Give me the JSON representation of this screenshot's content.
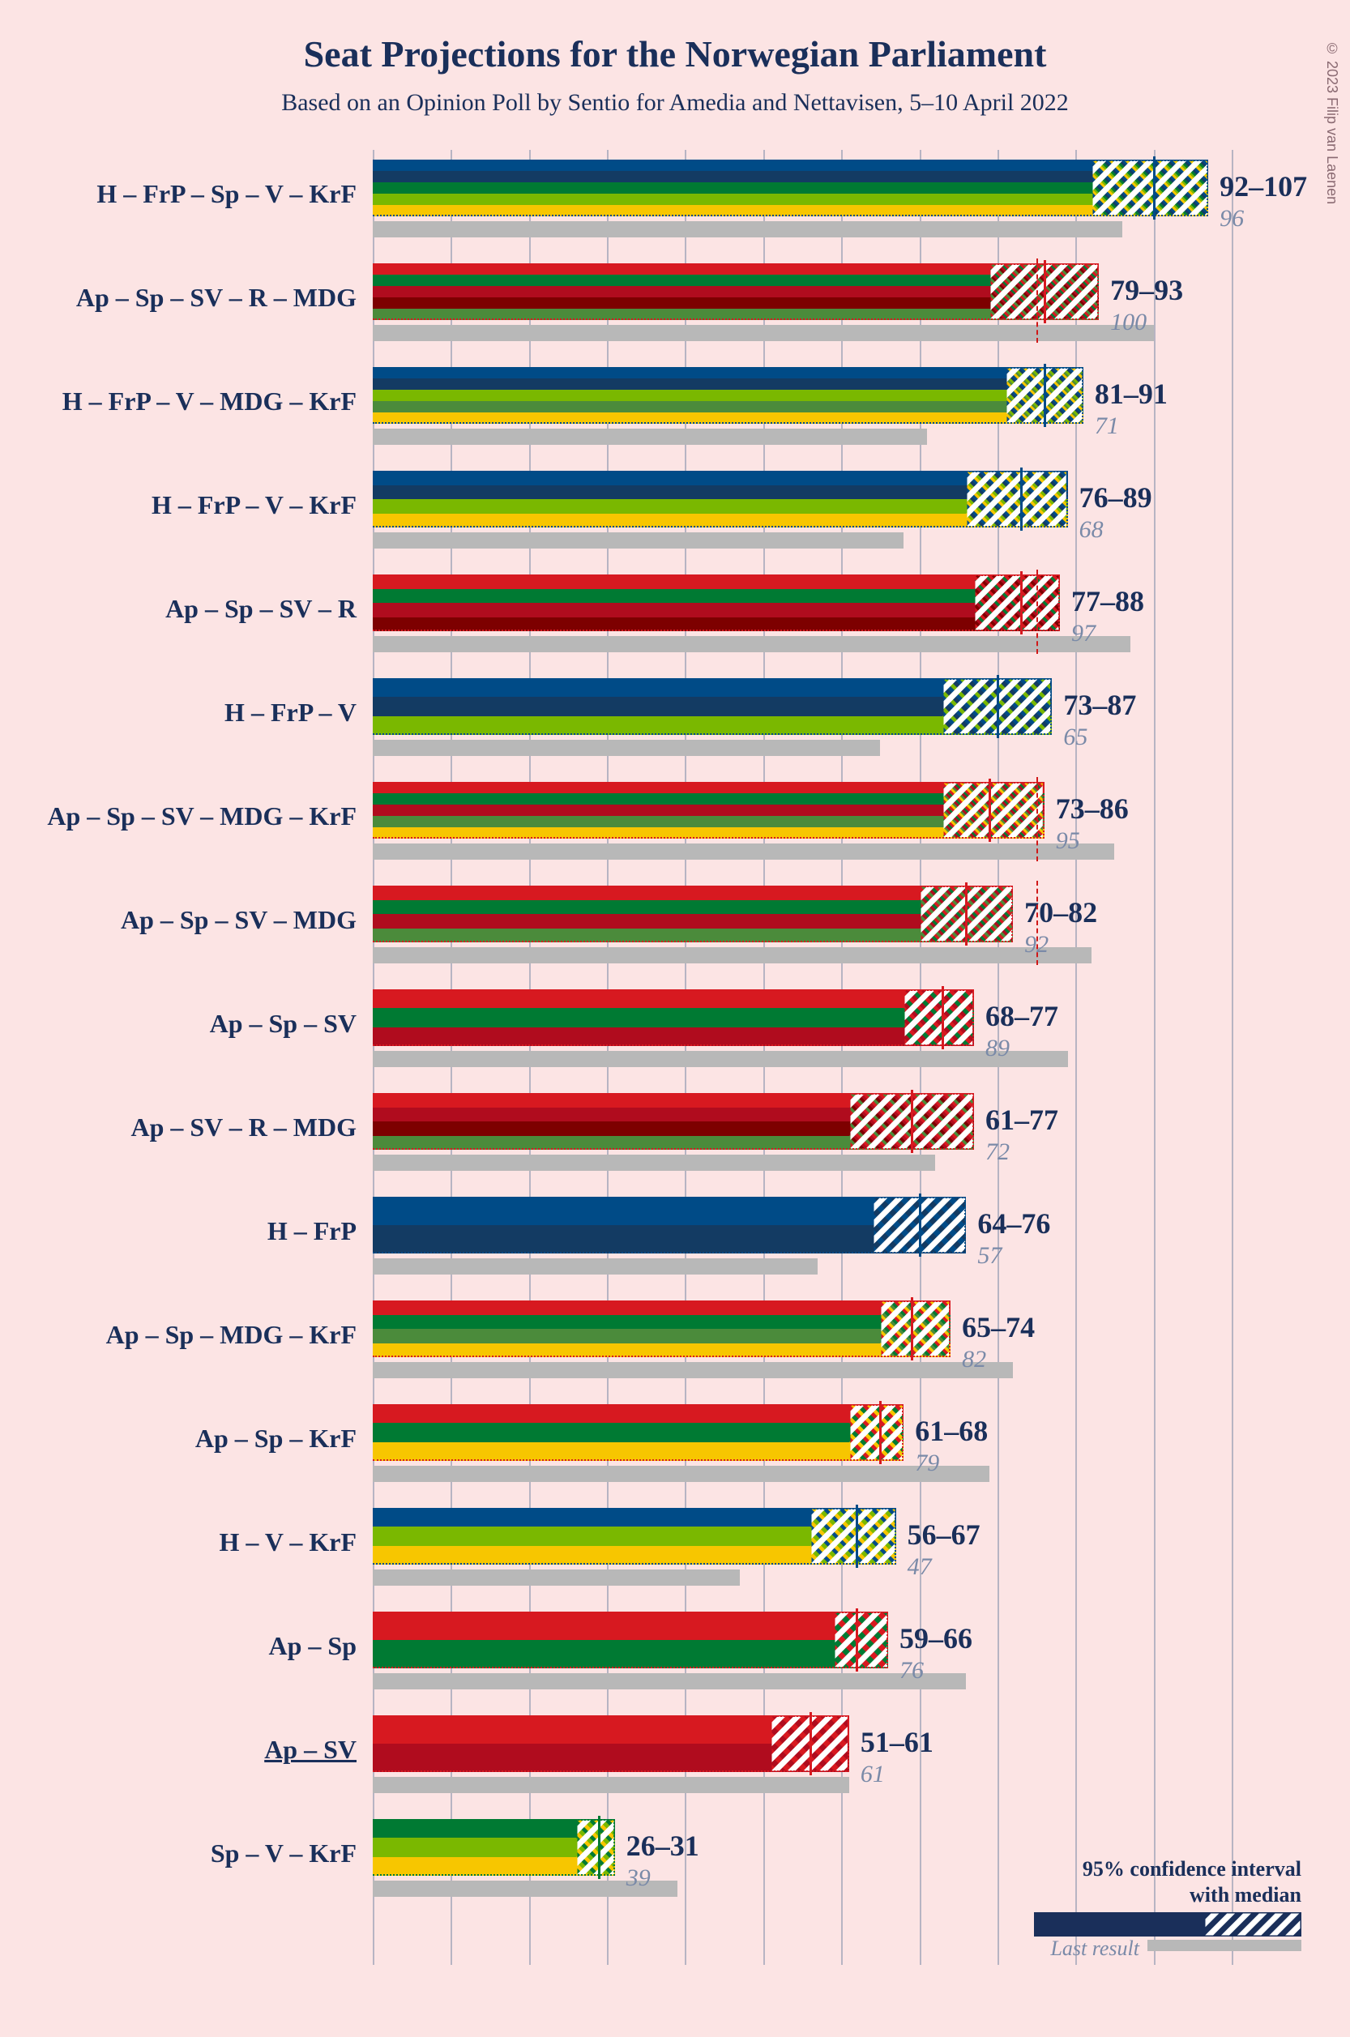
{
  "background_color": "#fce4e4",
  "title": "Seat Projections for the Norwegian Parliament",
  "title_color": "#1a2f5a",
  "title_fontsize": 46,
  "subtitle": "Based on an Opinion Poll by Sentio for Amedia and Nettavisen, 5–10 April 2022",
  "subtitle_color": "#1a2f5a",
  "subtitle_fontsize": 30,
  "copyright": "© 2023 Filip van Laenen",
  "copyright_color": "#8a6a72",
  "label_color": "#1a2f5a",
  "label_fontsize": 32,
  "value_color": "#1a2f5a",
  "value_fontsize": 36,
  "last_color": "#7a8aa8",
  "last_fontsize": 30,
  "gridline_color": "#7d8da8",
  "majority_line_color": "#d01818",
  "last_result_bar_color": "#b8b8b8",
  "party_colors": {
    "H": "#004b87",
    "FrP": "#133b63",
    "Sp": "#007a33",
    "V": "#7ab800",
    "KrF": "#f7c600",
    "Ap": "#d71920",
    "SV": "#b00c1e",
    "R": "#7d0000",
    "MDG": "#4b8b3b"
  },
  "chart": {
    "x_max": 110,
    "x_tick_step": 10,
    "majority_at": 85,
    "majority_rows": [
      1,
      4,
      6,
      7
    ]
  },
  "legend": {
    "title1": "95% confidence interval",
    "title2": "with median",
    "last_label": "Last result",
    "bar_color": "#1a2f5a",
    "text_color": "#1a2f5a",
    "last_bar_color": "#b8b8b8",
    "last_text_color": "#7a8aa8",
    "fontsize": 26
  },
  "rows": [
    {
      "label": "H – FrP – Sp – V – KrF",
      "parties": [
        "H",
        "FrP",
        "Sp",
        "V",
        "KrF"
      ],
      "low": 92,
      "high": 107,
      "median": 100,
      "last": 96,
      "underline": false
    },
    {
      "label": "Ap – Sp – SV – R – MDG",
      "parties": [
        "Ap",
        "Sp",
        "SV",
        "R",
        "MDG"
      ],
      "low": 79,
      "high": 93,
      "median": 86,
      "last": 100,
      "underline": false
    },
    {
      "label": "H – FrP – V – MDG – KrF",
      "parties": [
        "H",
        "FrP",
        "V",
        "MDG",
        "KrF"
      ],
      "low": 81,
      "high": 91,
      "median": 86,
      "last": 71,
      "underline": false
    },
    {
      "label": "H – FrP – V – KrF",
      "parties": [
        "H",
        "FrP",
        "V",
        "KrF"
      ],
      "low": 76,
      "high": 89,
      "median": 83,
      "last": 68,
      "underline": false
    },
    {
      "label": "Ap – Sp – SV – R",
      "parties": [
        "Ap",
        "Sp",
        "SV",
        "R"
      ],
      "low": 77,
      "high": 88,
      "median": 83,
      "last": 97,
      "underline": false
    },
    {
      "label": "H – FrP – V",
      "parties": [
        "H",
        "FrP",
        "V"
      ],
      "low": 73,
      "high": 87,
      "median": 80,
      "last": 65,
      "underline": false
    },
    {
      "label": "Ap – Sp – SV – MDG – KrF",
      "parties": [
        "Ap",
        "Sp",
        "SV",
        "MDG",
        "KrF"
      ],
      "low": 73,
      "high": 86,
      "median": 79,
      "last": 95,
      "underline": false
    },
    {
      "label": "Ap – Sp – SV – MDG",
      "parties": [
        "Ap",
        "Sp",
        "SV",
        "MDG"
      ],
      "low": 70,
      "high": 82,
      "median": 76,
      "last": 92,
      "underline": false
    },
    {
      "label": "Ap – Sp – SV",
      "parties": [
        "Ap",
        "Sp",
        "SV"
      ],
      "low": 68,
      "high": 77,
      "median": 73,
      "last": 89,
      "underline": false
    },
    {
      "label": "Ap – SV – R – MDG",
      "parties": [
        "Ap",
        "SV",
        "R",
        "MDG"
      ],
      "low": 61,
      "high": 77,
      "median": 69,
      "last": 72,
      "underline": false
    },
    {
      "label": "H – FrP",
      "parties": [
        "H",
        "FrP"
      ],
      "low": 64,
      "high": 76,
      "median": 70,
      "last": 57,
      "underline": false
    },
    {
      "label": "Ap – Sp – MDG – KrF",
      "parties": [
        "Ap",
        "Sp",
        "MDG",
        "KrF"
      ],
      "low": 65,
      "high": 74,
      "median": 69,
      "last": 82,
      "underline": false
    },
    {
      "label": "Ap – Sp – KrF",
      "parties": [
        "Ap",
        "Sp",
        "KrF"
      ],
      "low": 61,
      "high": 68,
      "median": 65,
      "last": 79,
      "underline": false
    },
    {
      "label": "H – V – KrF",
      "parties": [
        "H",
        "V",
        "KrF"
      ],
      "low": 56,
      "high": 67,
      "median": 62,
      "last": 47,
      "underline": false
    },
    {
      "label": "Ap – Sp",
      "parties": [
        "Ap",
        "Sp"
      ],
      "low": 59,
      "high": 66,
      "median": 62,
      "last": 76,
      "underline": false
    },
    {
      "label": "Ap – SV",
      "parties": [
        "Ap",
        "SV"
      ],
      "low": 51,
      "high": 61,
      "median": 56,
      "last": 61,
      "underline": true
    },
    {
      "label": "Sp – V – KrF",
      "parties": [
        "Sp",
        "V",
        "KrF"
      ],
      "low": 26,
      "high": 31,
      "median": 29,
      "last": 39,
      "underline": false
    }
  ]
}
